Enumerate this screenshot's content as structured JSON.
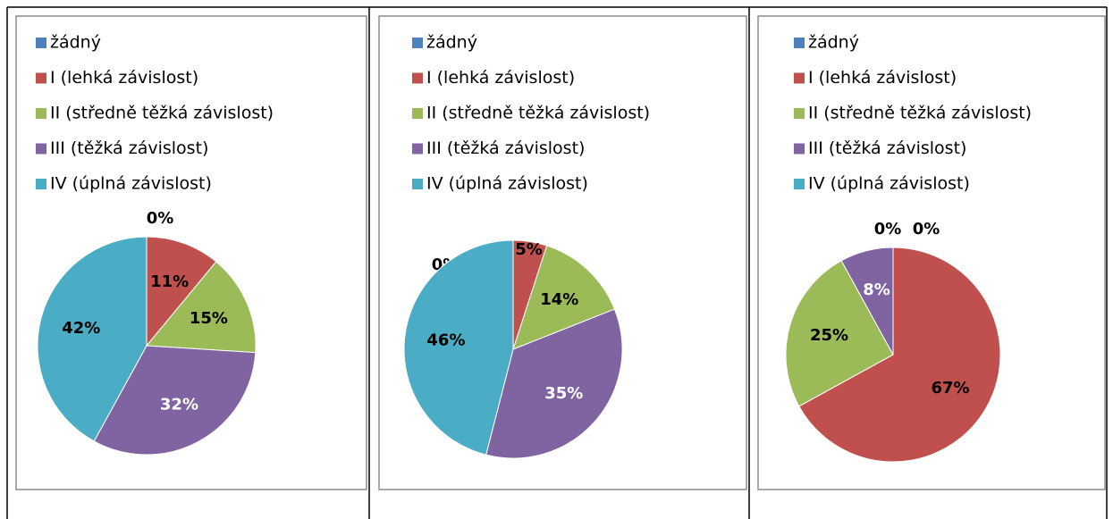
{
  "chart_data": [
    {
      "type": "pie",
      "legend": "top-left",
      "categories": [
        "žádný",
        "I (lehká závislost)",
        "II (středně těžká závislost)",
        "III (těžká závislost)",
        "IV (úplná závislost)"
      ],
      "colors": [
        "#4f81bd",
        "#c0504d",
        "#9bbb59",
        "#8064a2",
        "#4bacc6"
      ],
      "values": [
        0,
        11,
        15,
        32,
        42
      ],
      "value_labels": [
        "0%",
        "11%",
        "15%",
        "32%",
        "42%"
      ]
    },
    {
      "type": "pie",
      "legend": "top-left",
      "categories": [
        "žádný",
        "I (lehká závislost)",
        "II (středně těžká závislost)",
        "III (těžká závislost)",
        "IV (úplná závislost)"
      ],
      "colors": [
        "#4f81bd",
        "#c0504d",
        "#9bbb59",
        "#8064a2",
        "#4bacc6"
      ],
      "values": [
        0,
        5,
        14,
        35,
        46
      ],
      "value_labels": [
        "0%",
        "5%",
        "14%",
        "35%",
        "46%"
      ]
    },
    {
      "type": "pie",
      "legend": "top-left",
      "categories": [
        "žádný",
        "I (lehká závislost)",
        "II (středně těžká závislost)",
        "III (těžká závislost)",
        "IV (úplná závislost)"
      ],
      "colors": [
        "#4f81bd",
        "#c0504d",
        "#9bbb59",
        "#8064a2",
        "#4bacc6"
      ],
      "values": [
        0,
        67,
        25,
        8,
        0
      ],
      "value_labels": [
        "0%",
        "67%",
        "25%",
        "8%",
        "0%"
      ]
    }
  ]
}
